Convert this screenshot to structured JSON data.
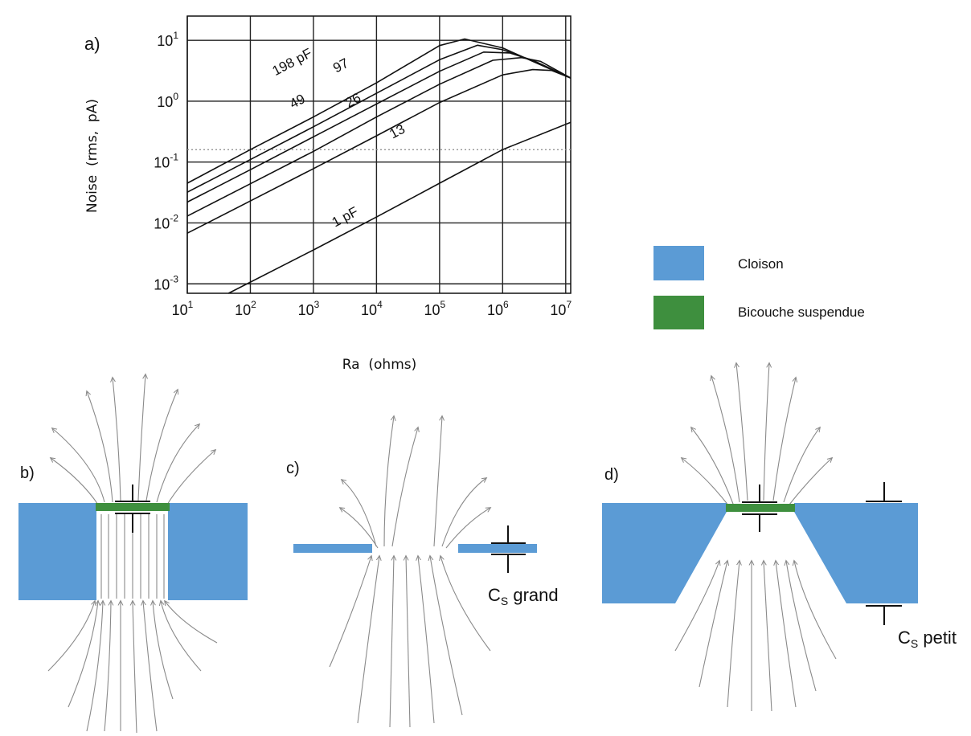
{
  "panels": {
    "a": {
      "label": "a)"
    },
    "b": {
      "label": "b)"
    },
    "c": {
      "label": "c)",
      "cap_label_main": "C",
      "cap_label_sub": "S",
      "cap_label_rest": " grand"
    },
    "d": {
      "label": "d)",
      "cap_label_main": "C",
      "cap_label_sub": "S",
      "cap_label_rest": " petit"
    }
  },
  "legend": {
    "items": [
      {
        "label": "Cloison",
        "color": "#5b9bd5"
      },
      {
        "label": "Bicouche suspendue",
        "color": "#3e8f3e"
      }
    ]
  },
  "colors": {
    "partition": "#5b9bd5",
    "bilayer": "#3e8f3e",
    "field_lines": "#8a8a8a"
  },
  "chart_data": {
    "type": "line",
    "title": "",
    "xlabel": "Ra  (ohms)",
    "ylabel": "Noise  (rms,  pA)",
    "xscale": "log",
    "yscale": "log",
    "xlim": [
      10,
      12000000
    ],
    "ylim": [
      0.0007,
      25
    ],
    "xticks": [
      {
        "value": 10,
        "base": "10",
        "exp": "1"
      },
      {
        "value": 100,
        "base": "10",
        "exp": "2"
      },
      {
        "value": 1000,
        "base": "10",
        "exp": "3"
      },
      {
        "value": 10000,
        "base": "10",
        "exp": "4"
      },
      {
        "value": 100000,
        "base": "10",
        "exp": "5"
      },
      {
        "value": 1000000,
        "base": "10",
        "exp": "6"
      },
      {
        "value": 10000000,
        "base": "10",
        "exp": "7"
      }
    ],
    "yticks": [
      {
        "value": 0.001,
        "base": "10",
        "exp": "-3"
      },
      {
        "value": 0.01,
        "base": "10",
        "exp": "-2"
      },
      {
        "value": 0.1,
        "base": "10",
        "exp": "-1"
      },
      {
        "value": 1,
        "base": "10",
        "exp": "0"
      },
      {
        "value": 10,
        "base": "10",
        "exp": "1"
      }
    ],
    "grid": true,
    "reference_line": {
      "y": 0.16,
      "style": "dotted"
    },
    "series": [
      {
        "name": "198 pF",
        "label_x": 250,
        "label_y": 2.6,
        "points": [
          [
            10,
            0.045
          ],
          [
            100,
            0.16
          ],
          [
            1000,
            0.55
          ],
          [
            10000,
            2.0
          ],
          [
            100000,
            8.2
          ],
          [
            250000,
            10.5
          ],
          [
            1000000,
            7.5
          ],
          [
            3000000,
            4.5
          ],
          [
            12000000,
            2.4
          ]
        ]
      },
      {
        "name": "97",
        "label_x": 2300,
        "label_y": 2.9,
        "points": [
          [
            10,
            0.032
          ],
          [
            100,
            0.11
          ],
          [
            1000,
            0.38
          ],
          [
            10000,
            1.35
          ],
          [
            100000,
            4.8
          ],
          [
            400000,
            8.3
          ],
          [
            1000000,
            7.0
          ],
          [
            3000000,
            4.6
          ],
          [
            12000000,
            2.4
          ]
        ]
      },
      {
        "name": "49",
        "label_x": 470,
        "label_y": 0.75,
        "points": [
          [
            10,
            0.022
          ],
          [
            100,
            0.075
          ],
          [
            1000,
            0.26
          ],
          [
            10000,
            0.9
          ],
          [
            100000,
            3.1
          ],
          [
            500000,
            6.4
          ],
          [
            1300000,
            6.2
          ],
          [
            3000000,
            4.7
          ],
          [
            12000000,
            2.4
          ]
        ]
      },
      {
        "name": "26",
        "label_x": 3600,
        "label_y": 0.78,
        "points": [
          [
            10,
            0.013
          ],
          [
            100,
            0.044
          ],
          [
            1000,
            0.15
          ],
          [
            10000,
            0.55
          ],
          [
            100000,
            1.9
          ],
          [
            700000,
            4.7
          ],
          [
            2000000,
            5.2
          ],
          [
            4000000,
            4.5
          ],
          [
            12000000,
            2.4
          ]
        ]
      },
      {
        "name": "13",
        "label_x": 18000,
        "label_y": 0.24,
        "points": [
          [
            10,
            0.0068
          ],
          [
            100,
            0.023
          ],
          [
            1000,
            0.078
          ],
          [
            10000,
            0.27
          ],
          [
            100000,
            0.95
          ],
          [
            1000000,
            2.7
          ],
          [
            3000000,
            3.3
          ],
          [
            6000000,
            3.2
          ],
          [
            12000000,
            2.4
          ]
        ]
      },
      {
        "name": "1 pF",
        "label_x": 2200,
        "label_y": 0.0085,
        "points": [
          [
            45,
            0.0007
          ],
          [
            1000,
            0.0036
          ],
          [
            10000,
            0.0125
          ],
          [
            100000,
            0.045
          ],
          [
            1000000,
            0.16
          ],
          [
            12000000,
            0.45
          ]
        ]
      }
    ]
  }
}
